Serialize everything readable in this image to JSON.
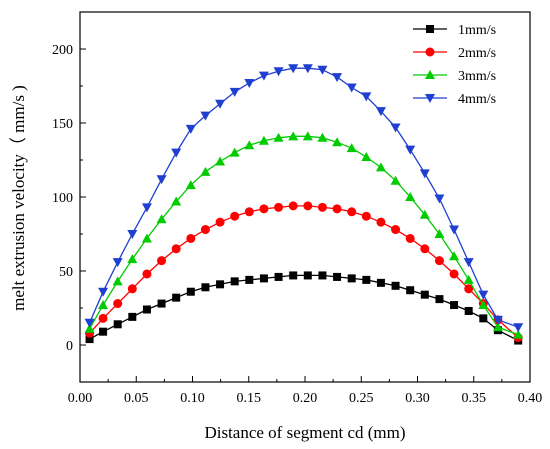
{
  "chart_data": {
    "type": "line",
    "xlabel": "Distance of segment cd (mm)",
    "ylabel": "melt extrusion velocity（ mm/s )",
    "xlim": [
      0.0,
      0.4
    ],
    "ylim": [
      -25,
      225
    ],
    "xticks": [
      "0.00",
      "0.05",
      "0.10",
      "0.15",
      "0.20",
      "0.25",
      "0.30",
      "0.35",
      "0.40"
    ],
    "yticks": [
      "0",
      "50",
      "100",
      "150",
      "200"
    ],
    "xtick_values": [
      0.0,
      0.05,
      0.1,
      0.15,
      0.2,
      0.25,
      0.3,
      0.35,
      0.4
    ],
    "ytick_values": [
      0,
      50,
      100,
      150,
      200
    ],
    "grid": false,
    "legend_position": "top-right",
    "x": [
      0.0085,
      0.0205,
      0.0335,
      0.0465,
      0.0595,
      0.0725,
      0.0855,
      0.0985,
      0.1115,
      0.1245,
      0.1375,
      0.1505,
      0.1635,
      0.1765,
      0.1895,
      0.2025,
      0.2155,
      0.2285,
      0.2415,
      0.2545,
      0.2675,
      0.2805,
      0.2935,
      0.3065,
      0.3195,
      0.3325,
      0.3455,
      0.3585,
      0.3715,
      0.3895
    ],
    "series": [
      {
        "name": "1mm/s",
        "color": "#000000",
        "marker": "square",
        "values": [
          4,
          9,
          14,
          19,
          24,
          28,
          32,
          36,
          39,
          41,
          43,
          44,
          45,
          46,
          47,
          47,
          47,
          46,
          45,
          44,
          42,
          40,
          37,
          34,
          31,
          27,
          23,
          18,
          10,
          3
        ]
      },
      {
        "name": "2mm/s",
        "color": "#ff0000",
        "marker": "circle",
        "values": [
          8,
          18,
          28,
          38,
          48,
          57,
          65,
          72,
          78,
          83,
          87,
          90,
          92,
          93,
          94,
          94,
          93,
          92,
          90,
          87,
          83,
          78,
          72,
          65,
          57,
          48,
          38,
          28,
          17,
          5
        ]
      },
      {
        "name": "3mm/s",
        "color": "#00cc00",
        "marker": "triangle-up",
        "values": [
          11,
          27,
          43,
          58,
          72,
          85,
          97,
          108,
          117,
          124,
          130,
          135,
          138,
          140,
          141,
          141,
          140,
          137,
          133,
          127,
          120,
          111,
          100,
          88,
          75,
          60,
          44,
          27,
          12,
          7
        ]
      },
      {
        "name": "4mm/s",
        "color": "#1f3fd1",
        "marker": "triangle-down",
        "values": [
          15,
          36,
          56,
          75,
          93,
          112,
          130,
          146,
          155,
          163,
          171,
          177,
          182,
          185,
          187,
          187,
          186,
          181,
          174,
          168,
          158,
          147,
          132,
          116,
          99,
          78,
          56,
          34,
          17,
          12
        ]
      }
    ]
  }
}
